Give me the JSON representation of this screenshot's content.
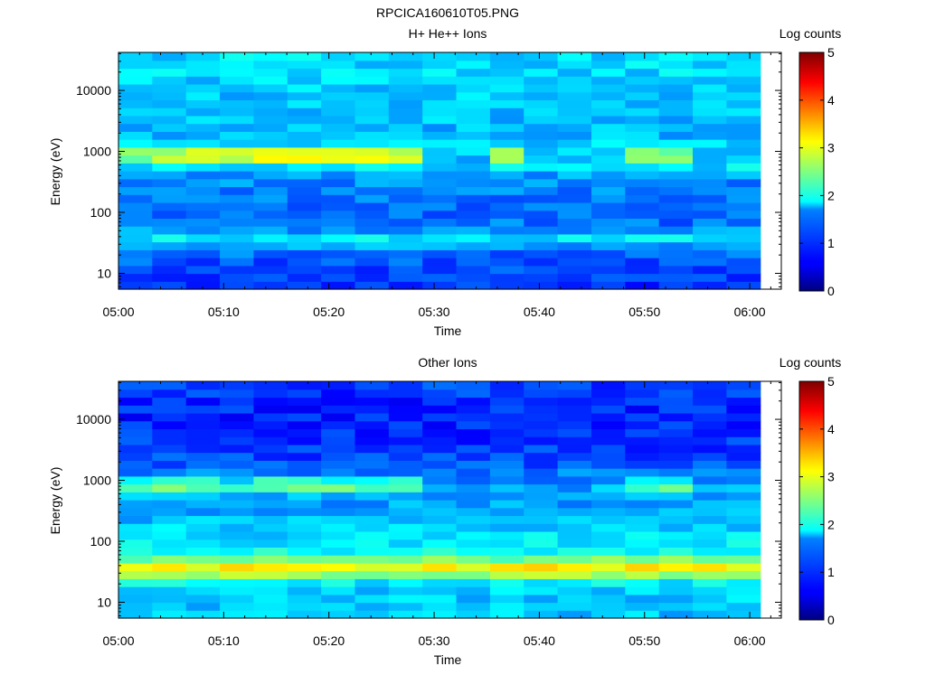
{
  "figure_title": "RPCICA160610T05.PNG",
  "chart_data": [
    {
      "type": "heatmap",
      "title": "H+ He++ Ions",
      "xlabel": "Time",
      "ylabel": "Energy (eV)",
      "x_ticks": [
        "05:00",
        "05:10",
        "05:20",
        "05:30",
        "05:40",
        "05:50",
        "06:00"
      ],
      "x_range_minutes": [
        0,
        63
      ],
      "x_data_end_minutes": 61,
      "y_scale": "log",
      "y_ticks": [
        "10",
        "100",
        "1000",
        "10000"
      ],
      "y_tick_values": [
        10,
        100,
        1000,
        10000
      ],
      "ylim": [
        5.5,
        42000
      ],
      "time_columns": 19,
      "energy_channels": 30,
      "colorbar": {
        "label": "Log counts",
        "range": [
          0,
          5
        ],
        "ticks": [
          "0",
          "1",
          "2",
          "3",
          "4",
          "5"
        ]
      },
      "profile": {
        "base": [
          [
            5.5,
            0.8
          ],
          [
            8,
            0.9
          ],
          [
            12,
            1.0
          ],
          [
            20,
            1.1
          ],
          [
            30,
            1.5
          ],
          [
            40,
            1.8
          ],
          [
            55,
            1.3
          ],
          [
            80,
            1.1
          ],
          [
            150,
            1.2
          ],
          [
            300,
            1.3
          ],
          [
            500,
            1.5
          ],
          [
            700,
            2.2
          ],
          [
            850,
            2.9
          ],
          [
            1000,
            2.5
          ],
          [
            1300,
            1.7
          ],
          [
            2000,
            1.5
          ],
          [
            5000,
            1.6
          ],
          [
            10000,
            1.6
          ],
          [
            20000,
            1.7
          ],
          [
            42000,
            1.7
          ]
        ],
        "column_band_boost": [
          0.0,
          0.3,
          0.5,
          0.3,
          0.6,
          0.6,
          0.6,
          0.5,
          0.4,
          -0.9,
          -0.9,
          0.1,
          -0.9,
          -0.9,
          -0.9,
          0.0,
          0.1,
          -0.9,
          -0.9
        ],
        "band_range": [
          600,
          1300
        ]
      }
    },
    {
      "type": "heatmap",
      "title": "Other Ions",
      "xlabel": "Time",
      "ylabel": "Energy (eV)",
      "x_ticks": [
        "05:00",
        "05:10",
        "05:20",
        "05:30",
        "05:40",
        "05:50",
        "06:00"
      ],
      "x_range_minutes": [
        0,
        63
      ],
      "x_data_end_minutes": 61,
      "y_scale": "log",
      "y_ticks": [
        "10",
        "100",
        "1000",
        "10000"
      ],
      "y_tick_values": [
        10,
        100,
        1000,
        10000
      ],
      "ylim": [
        5.5,
        42000
      ],
      "time_columns": 19,
      "energy_channels": 30,
      "colorbar": {
        "label": "Log counts",
        "range": [
          0,
          5
        ],
        "ticks": [
          "0",
          "1",
          "2",
          "3",
          "4",
          "5"
        ]
      },
      "profile": {
        "base": [
          [
            5.5,
            1.6
          ],
          [
            10,
            1.6
          ],
          [
            20,
            1.7
          ],
          [
            28,
            2.6
          ],
          [
            35,
            3.3
          ],
          [
            45,
            2.8
          ],
          [
            60,
            2.0
          ],
          [
            100,
            1.8
          ],
          [
            200,
            1.6
          ],
          [
            400,
            1.4
          ],
          [
            600,
            1.5
          ],
          [
            800,
            2.2
          ],
          [
            1000,
            1.7
          ],
          [
            1500,
            1.1
          ],
          [
            3000,
            0.9
          ],
          [
            10000,
            0.8
          ],
          [
            20000,
            0.8
          ],
          [
            42000,
            1.0
          ]
        ],
        "column_band_boost": [
          0.0,
          0.3,
          0.4,
          0.0,
          0.4,
          0.4,
          0.3,
          0.3,
          0.3,
          -0.6,
          -0.6,
          -0.5,
          -0.6,
          -0.6,
          -0.5,
          0.1,
          0.3,
          -0.5,
          -0.6
        ],
        "band_range": [
          600,
          1300
        ]
      }
    }
  ]
}
